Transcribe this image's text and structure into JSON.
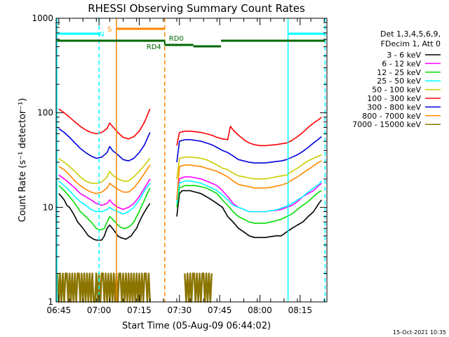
{
  "chart_data": {
    "type": "line",
    "title": "RHESSI Observing Summary Count Rates",
    "xlabel": "Start Time (05-Aug-09 06:44:02)",
    "ylabel": "Count Rate (s⁻¹ detector⁻¹)",
    "y_scale": "log",
    "ylim": [
      1,
      1000
    ],
    "xlim_minutes": [
      0,
      101
    ],
    "x_tick_labels": [
      "06:45",
      "07:00",
      "07:15",
      "07:30",
      "07:45",
      "08:00",
      "08:15"
    ],
    "x_tick_minutes": [
      1,
      16,
      31,
      46,
      61,
      76,
      91
    ],
    "y_tick_labels": [
      "1",
      "10",
      "100",
      "1000"
    ],
    "y_tick_values": [
      1,
      10,
      100,
      1000
    ],
    "legend_header": [
      "Det 1,3,4,5,6,9,",
      "FDecim 1, Att 0"
    ],
    "legend_position": "right",
    "footer_date": "15-Oct-2021 10:35",
    "colors": {
      "s3_6": "#000000",
      "s6_12": "#ff00ff",
      "s12_25": "#00dd00",
      "s25_50": "#00ffff",
      "s50_100": "#cccc00",
      "s100_300": "#ff0000",
      "s300_800": "#0000dd",
      "s800_7000": "#ff8800",
      "s7000_15000": "#8b7500",
      "night": "#00ffff",
      "saa": "#ff8800",
      "rd": "#006600"
    },
    "series": [
      {
        "name": "3 - 6 keV",
        "key": "s3_6",
        "x": [
          1,
          2,
          3,
          4,
          5,
          6,
          7,
          8,
          9,
          10,
          11,
          12,
          13,
          14,
          15,
          16,
          17,
          18,
          19,
          20,
          21,
          22,
          23,
          24,
          25,
          26,
          27,
          28,
          29,
          30,
          31,
          32,
          33,
          34,
          35
        ],
        "y": [
          14,
          13,
          12,
          10.5,
          10,
          9,
          8,
          7,
          6.5,
          6,
          5.5,
          5,
          4.8,
          4.6,
          4.5,
          4.5,
          4.5,
          5,
          6,
          6.5,
          6,
          5.5,
          5,
          4.8,
          4.7,
          4.6,
          4.8,
          5,
          5.5,
          6,
          7,
          8,
          9,
          10,
          11
        ]
      },
      {
        "name": "3 - 6 keV",
        "key": "s3_6",
        "x": [
          45,
          46,
          47,
          48,
          50,
          52,
          54,
          56,
          58,
          60,
          62,
          64,
          66,
          68,
          70,
          72,
          74,
          76,
          78,
          80,
          82,
          84,
          86,
          88,
          90,
          92,
          94,
          96,
          98,
          99
        ],
        "y": [
          8,
          14,
          15,
          15,
          15,
          14.5,
          14,
          13,
          12,
          11,
          10,
          8,
          7,
          6,
          5.5,
          5,
          4.8,
          4.8,
          4.8,
          4.9,
          5,
          5,
          5.5,
          6,
          6.5,
          7,
          8,
          9,
          11,
          12
        ]
      },
      {
        "name": "6 - 12 keV",
        "key": "s6_12",
        "x": [
          1,
          3,
          5,
          7,
          9,
          11,
          13,
          15,
          17,
          19,
          20,
          21,
          23,
          25,
          27,
          29,
          31,
          33,
          35
        ],
        "y": [
          22,
          20,
          18,
          16,
          14,
          13,
          12,
          11,
          10.5,
          11,
          12,
          11,
          10,
          9.5,
          10,
          11,
          13,
          16,
          20
        ]
      },
      {
        "name": "6 - 12 keV",
        "key": "s6_12",
        "x": [
          45,
          46,
          48,
          50,
          52,
          54,
          56,
          58,
          60,
          62,
          64,
          66,
          68,
          70,
          72,
          74,
          76,
          78,
          80,
          82,
          84,
          86,
          88,
          90,
          92,
          94,
          96,
          98,
          99
        ],
        "y": [
          12,
          20,
          21,
          21,
          20.5,
          20,
          19,
          18,
          17,
          15,
          13,
          11,
          10,
          9.5,
          9,
          9,
          9,
          9,
          9.2,
          9.3,
          9.5,
          10,
          10.5,
          11.5,
          13,
          14,
          15,
          17,
          18
        ]
      },
      {
        "name": "12 - 25 keV",
        "key": "s12_25",
        "x": [
          1,
          2,
          3,
          4,
          5,
          6,
          7,
          8,
          9,
          10,
          11,
          12,
          13,
          14,
          15,
          16,
          17,
          18,
          19,
          20,
          21,
          22,
          23,
          24,
          25,
          26,
          27,
          28,
          29,
          30,
          31,
          32,
          33,
          34,
          35
        ],
        "y": [
          17,
          16,
          15,
          14,
          13,
          12,
          11,
          10,
          9,
          8.5,
          8,
          7.5,
          7,
          6.5,
          6,
          5.8,
          5.8,
          6,
          7,
          8,
          7.5,
          7,
          6.5,
          6.2,
          6,
          6,
          6.2,
          6.5,
          7,
          8,
          9,
          10.5,
          12,
          14,
          16
        ]
      },
      {
        "name": "12 - 25 keV",
        "key": "s12_25",
        "x": [
          45,
          46,
          48,
          50,
          52,
          54,
          56,
          58,
          60,
          62,
          64,
          66,
          68,
          70,
          72,
          74,
          76,
          78,
          80,
          82,
          84,
          86,
          88,
          90,
          92,
          94,
          96,
          98,
          99
        ],
        "y": [
          10,
          16,
          17,
          17,
          17,
          16.5,
          16,
          15,
          14,
          12,
          10.5,
          9,
          8,
          7.5,
          7,
          6.8,
          6.8,
          6.8,
          7,
          7.2,
          7.5,
          8,
          8.5,
          9.5,
          10.5,
          11.5,
          13,
          14.5,
          15
        ]
      },
      {
        "name": "25 - 50 keV",
        "key": "s25_50",
        "x": [
          1,
          3,
          5,
          7,
          9,
          11,
          13,
          15,
          17,
          19,
          20,
          21,
          23,
          25,
          27,
          29,
          31,
          33,
          35
        ],
        "y": [
          19,
          17,
          15,
          13,
          11.5,
          10.5,
          9.5,
          9,
          9,
          9.5,
          10,
          9.5,
          9,
          8.5,
          9,
          10,
          12,
          15,
          18
        ]
      },
      {
        "name": "25 - 50 keV",
        "key": "s25_50",
        "x": [
          45,
          46,
          48,
          50,
          52,
          54,
          56,
          58,
          60,
          62,
          64,
          66,
          68,
          70,
          72,
          74,
          76,
          78,
          80,
          82,
          84,
          86,
          88,
          90,
          92,
          94,
          96,
          98,
          99
        ],
        "y": [
          11,
          18,
          19,
          19,
          18.5,
          18,
          17,
          16,
          15,
          13.5,
          12,
          10.5,
          10,
          9.5,
          9,
          9,
          9,
          9,
          9.2,
          9.4,
          9.8,
          10.3,
          11,
          12,
          13,
          14.5,
          16,
          17.5,
          19
        ]
      },
      {
        "name": "50 - 100 keV",
        "key": "s50_100",
        "x": [
          1,
          3,
          5,
          7,
          9,
          11,
          13,
          15,
          17,
          19,
          20,
          21,
          23,
          25,
          27,
          29,
          31,
          33,
          35
        ],
        "y": [
          33,
          30,
          27,
          24,
          21,
          19,
          18,
          18,
          18.5,
          21,
          24,
          22,
          20,
          19,
          19,
          21,
          24,
          28,
          33
        ]
      },
      {
        "name": "50 - 100 keV",
        "key": "s50_100",
        "x": [
          45,
          46,
          48,
          50,
          52,
          54,
          56,
          58,
          60,
          62,
          64,
          66,
          68,
          70,
          72,
          74,
          76,
          78,
          80,
          82,
          84,
          86,
          88,
          90,
          92,
          94,
          96,
          98,
          99
        ],
        "y": [
          20,
          33,
          34,
          34,
          33.5,
          33,
          32,
          30,
          28,
          26,
          25,
          23,
          21.5,
          21,
          20.5,
          20,
          20,
          20,
          20.5,
          21,
          21.5,
          22,
          24,
          26,
          28.5,
          31,
          33,
          35,
          36
        ]
      },
      {
        "name": "100 - 300 keV",
        "key": "s100_300",
        "x": [
          1,
          3,
          5,
          7,
          9,
          11,
          13,
          15,
          17,
          19,
          20,
          21,
          23,
          25,
          27,
          29,
          31,
          33,
          35
        ],
        "y": [
          110,
          100,
          90,
          80,
          72,
          66,
          62,
          60,
          62,
          68,
          78,
          72,
          62,
          55,
          53,
          56,
          64,
          80,
          110
        ]
      },
      {
        "name": "100 - 300 keV",
        "key": "s100_300",
        "x": [
          45,
          46,
          48,
          50,
          52,
          54,
          56,
          58,
          60,
          62,
          64,
          65,
          66,
          68,
          70,
          72,
          74,
          76,
          78,
          80,
          82,
          84,
          86,
          88,
          90,
          92,
          94,
          96,
          98,
          99
        ],
        "y": [
          45,
          62,
          64,
          64,
          63,
          62,
          60,
          58,
          55,
          53,
          52,
          72,
          66,
          58,
          52,
          48,
          46,
          45,
          45,
          45.5,
          46,
          47,
          48,
          51,
          56,
          62,
          70,
          78,
          85,
          90
        ]
      },
      {
        "name": "300 - 800 keV",
        "key": "s300_800",
        "x": [
          1,
          3,
          5,
          7,
          9,
          11,
          13,
          15,
          17,
          19,
          20,
          21,
          23,
          25,
          27,
          29,
          31,
          33,
          35
        ],
        "y": [
          68,
          62,
          55,
          48,
          42,
          38,
          35,
          33,
          34,
          38,
          44,
          40,
          36,
          32,
          31,
          33,
          38,
          46,
          62
        ]
      },
      {
        "name": "300 - 800 keV",
        "key": "s300_800",
        "x": [
          45,
          46,
          48,
          50,
          52,
          54,
          56,
          58,
          60,
          62,
          64,
          66,
          68,
          70,
          72,
          74,
          76,
          78,
          80,
          82,
          84,
          86,
          88,
          90,
          92,
          94,
          96,
          98,
          99
        ],
        "y": [
          30,
          50,
          52,
          52,
          51,
          50,
          48,
          46,
          43,
          40,
          38,
          35,
          32,
          31,
          30,
          29.5,
          29.5,
          29.5,
          30,
          30.5,
          31,
          32,
          34,
          36,
          39,
          43,
          48,
          53,
          56
        ]
      },
      {
        "name": "800 - 7000 keV",
        "key": "s800_7000",
        "x": [
          1,
          3,
          5,
          7,
          9,
          11,
          13,
          15,
          17,
          19,
          20,
          21,
          23,
          25,
          27,
          29,
          31,
          33,
          35
        ],
        "y": [
          27,
          25,
          22,
          19,
          17,
          15.5,
          14.5,
          14,
          14.5,
          16,
          18,
          17,
          15.5,
          14.5,
          14.5,
          16,
          19,
          23,
          28
        ]
      },
      {
        "name": "800 - 7000 keV",
        "key": "s800_7000",
        "x": [
          45,
          46,
          48,
          50,
          52,
          54,
          56,
          58,
          60,
          62,
          64,
          66,
          68,
          70,
          72,
          74,
          76,
          78,
          80,
          82,
          84,
          86,
          88,
          90,
          92,
          94,
          96,
          98,
          99
        ],
        "y": [
          12,
          27,
          28,
          28,
          27.5,
          27,
          26,
          25,
          24,
          22.5,
          21,
          19,
          17.5,
          17,
          16.5,
          16,
          16,
          16,
          16.3,
          16.7,
          17.2,
          18,
          19.5,
          21,
          23,
          25,
          27.5,
          30,
          31
        ]
      },
      {
        "name": "7000 - 15000 keV",
        "key": "s7000_15000",
        "x": [
          0.5,
          1,
          1.5,
          2,
          2.5,
          3,
          3.5,
          4,
          4.5,
          5,
          5.5,
          6,
          6.5,
          7,
          7.5,
          8,
          8.5,
          9,
          9.5,
          10,
          10.5,
          11,
          11.5,
          12,
          12.5,
          13,
          13.5,
          14,
          14.5,
          15,
          15.5,
          16,
          16.5,
          17,
          17.5,
          18,
          18.5,
          19,
          19.5,
          20,
          20.5,
          21,
          21.5,
          22,
          22.5,
          23,
          23.5,
          24,
          24.5,
          25,
          25.5,
          26,
          26.5,
          27,
          27.5,
          28,
          28.5,
          29,
          29.5,
          30,
          30.5,
          31,
          31.5,
          32,
          32.5,
          33,
          33.5,
          34,
          34.5,
          35
        ],
        "y": [
          2,
          1,
          2,
          1,
          2,
          1,
          2,
          2,
          1,
          2,
          1,
          2,
          1,
          2,
          1,
          2,
          2,
          1,
          2,
          1,
          2,
          1,
          2,
          1,
          2,
          1,
          2,
          1,
          1,
          2,
          1,
          2,
          1,
          2,
          2,
          1,
          2,
          1,
          2,
          1,
          2,
          1,
          2,
          1,
          2,
          1,
          2,
          2,
          1,
          2,
          1,
          2,
          1,
          2,
          1,
          2,
          1,
          2,
          1,
          2,
          1,
          2,
          1,
          2,
          1,
          2,
          2,
          1,
          2,
          1
        ]
      },
      {
        "name": "7000 - 15000 keV",
        "key": "s7000_15000",
        "x": [
          48,
          48.5,
          49,
          49.5,
          50,
          50.5,
          51,
          51.5,
          52,
          52.5,
          53,
          53.5,
          54,
          54.5,
          55,
          55.5,
          56,
          56.5,
          57,
          57.5,
          58
        ],
        "y": [
          2,
          1,
          2,
          1,
          2,
          1,
          2,
          2,
          1,
          2,
          1,
          2,
          1,
          2,
          2,
          1,
          2,
          1,
          2,
          1,
          2
        ]
      }
    ],
    "night_intervals": [
      [
        0.3,
        16
      ],
      [
        86.5,
        100.3
      ]
    ],
    "night_marker_label": "N",
    "saa_interval": [
      22.5,
      40.5
    ],
    "saa_marker_label": "S",
    "rd_labels": [
      "RD4",
      "RD0"
    ],
    "rd_segments": [
      [
        0.3,
        40.5,
        0
      ],
      [
        40.5,
        51.2,
        1
      ],
      [
        51.2,
        61.5,
        2
      ],
      [
        61.5,
        100.3,
        0
      ]
    ]
  }
}
